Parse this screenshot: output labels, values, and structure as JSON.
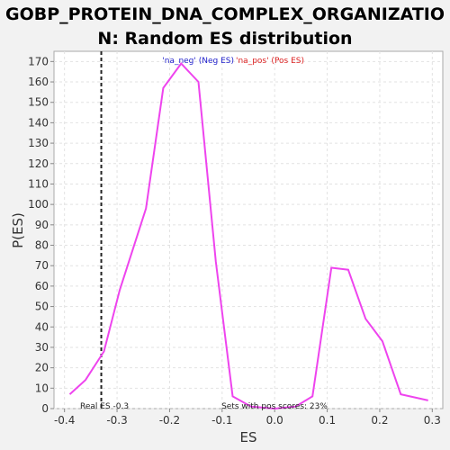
{
  "chart_data": {
    "type": "line",
    "title_line1": "GOBP_PROTEIN_DNA_COMPLEX_ORGANIZATIO",
    "title_line2": "N: Random ES distribution",
    "xlabel": "ES",
    "ylabel": "P(ES)",
    "xlim": [
      -0.42,
      0.32
    ],
    "ylim": [
      0,
      175
    ],
    "xticks": [
      -0.4,
      -0.3,
      -0.2,
      -0.1,
      0.0,
      0.1,
      0.2,
      0.3
    ],
    "xtick_labels": [
      "-0.4",
      "-0.3",
      "-0.2",
      "-0.1",
      "0.0",
      "0.1",
      "0.2",
      "0.3"
    ],
    "yticks": [
      0,
      10,
      20,
      30,
      40,
      50,
      60,
      70,
      80,
      90,
      100,
      110,
      120,
      130,
      140,
      150,
      160,
      170
    ],
    "grid": true,
    "series": [
      {
        "color": "#ee44ee",
        "x": [
          -0.39,
          -0.36,
          -0.325,
          -0.295,
          -0.245,
          -0.212,
          -0.178,
          -0.145,
          -0.112,
          -0.08,
          -0.045,
          0.0,
          0.04,
          0.072,
          0.108,
          0.14,
          0.173,
          0.205,
          0.24,
          0.292
        ],
        "y": [
          7,
          14,
          28,
          58,
          98,
          157,
          169,
          160,
          72,
          6,
          1,
          0,
          1,
          6,
          69,
          68,
          44,
          33,
          7,
          4
        ]
      }
    ],
    "real_es": -0.33,
    "real_es_label": "Real ES -0.3",
    "sets_label": "Sets with pos scores: 23%",
    "legend_neg": "'na_neg' (Neg ES)",
    "legend_pos": "'na_pos' (Pos ES)",
    "colors": {
      "line": "#ee44ee",
      "neg": "#2222cc",
      "pos": "#dd2222",
      "realline": "#222222"
    }
  }
}
